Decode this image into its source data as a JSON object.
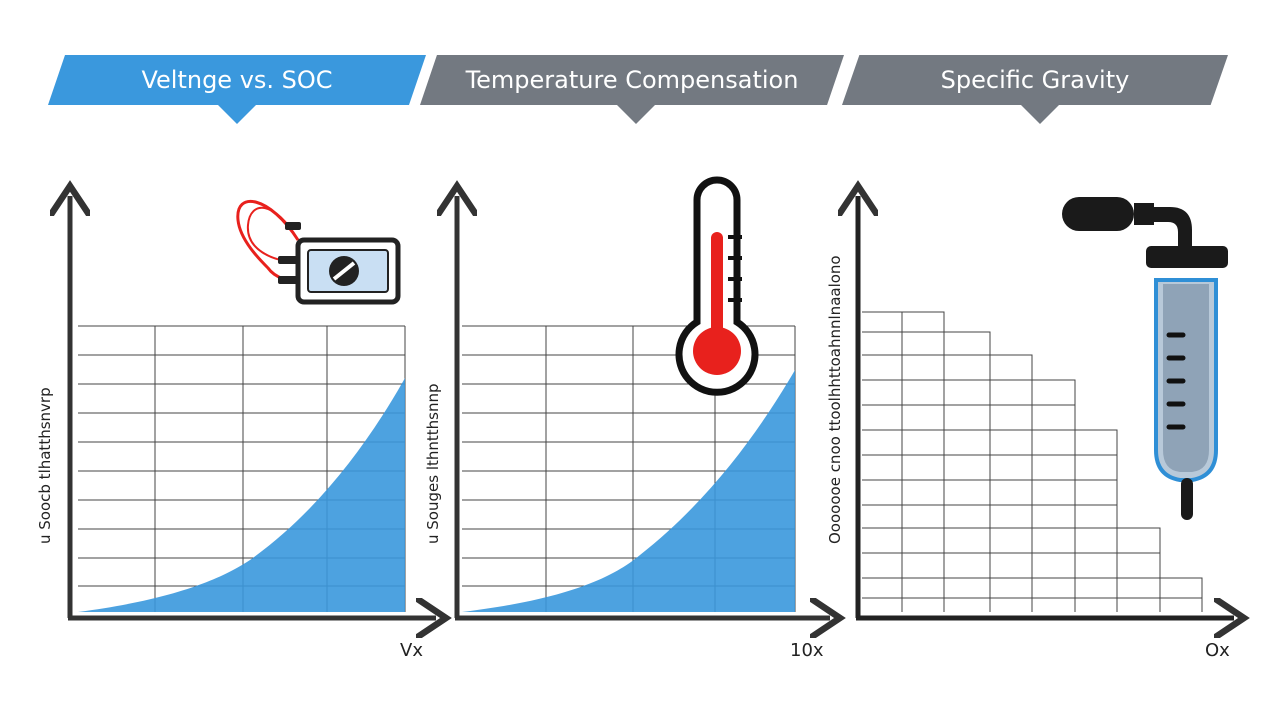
{
  "panels": [
    {
      "title": "Veltnge vs. SOC",
      "ylabel": "u Soocb tlhatthsnvrp",
      "x_end_label": "Vx"
    },
    {
      "title": "Temperature Compensation",
      "ylabel": "u Souges lthntthsnnp",
      "x_end_label": "10x"
    },
    {
      "title": "Specific Gravity",
      "ylabel": "Ooooooe cnoo ttoolhhttoahnnlnaalono",
      "x_end_label": "Ox"
    }
  ],
  "icons": [
    "multimeter-icon",
    "thermometer-icon",
    "hydrometer-icon"
  ],
  "colors": {
    "accent": "#3a98dd",
    "banner_gray": "#737981",
    "axis": "#333333",
    "thermo_red": "#e8211d"
  }
}
